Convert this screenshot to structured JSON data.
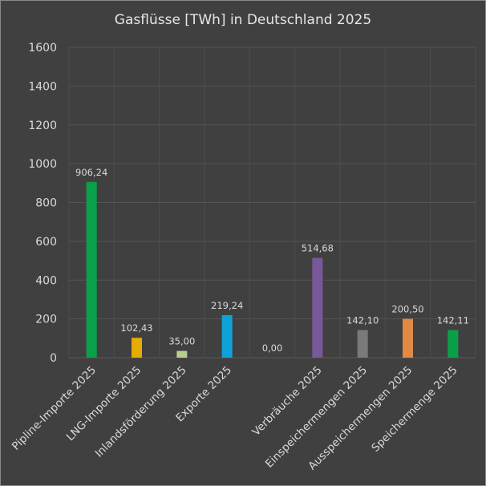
{
  "chart_data": {
    "type": "bar",
    "title": "Gasflüsse [TWh] in Deutschland 2025",
    "xlabel": "",
    "ylabel": "",
    "ylim": [
      0,
      1600
    ],
    "yticks": [
      0,
      200,
      400,
      600,
      800,
      1000,
      1200,
      1400,
      1600
    ],
    "grid": true,
    "categories": [
      "Pipline-Importe 2025",
      "LNG-Importe 2025",
      "Inlandsförderung 2025",
      "Exporte 2025",
      "",
      "Verbräuche 2025",
      "Einspeichermengen 2025",
      "Ausspeichermengen 2025",
      "Speichermenge 2025"
    ],
    "values": [
      906.24,
      102.43,
      35.0,
      219.24,
      0.0,
      514.68,
      142.1,
      200.5,
      142.11
    ],
    "value_labels": [
      "906,24",
      "102,43",
      "35,00",
      "219,24",
      "0,00",
      "514,68",
      "142,10",
      "200,50",
      "142,11"
    ],
    "colors": [
      "#0aa04a",
      "#e6ac00",
      "#b5cf8e",
      "#0ea2d8",
      "#a0a0a0",
      "#785898",
      "#7a7a7a",
      "#e08a45",
      "#0aa04a"
    ]
  }
}
